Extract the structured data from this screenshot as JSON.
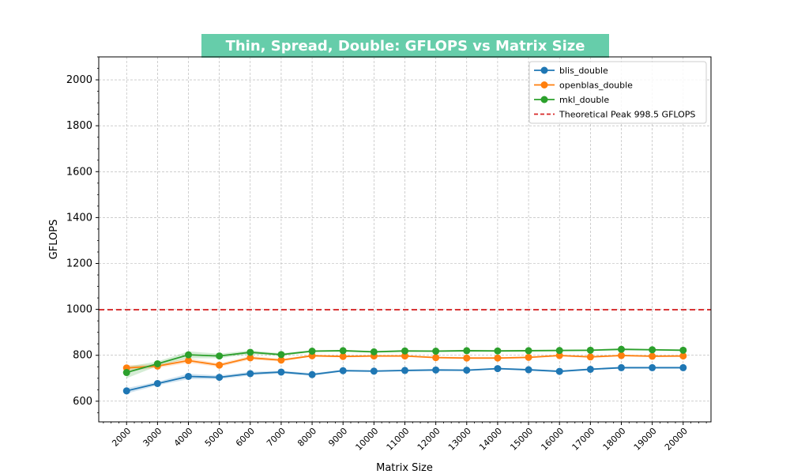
{
  "chart_data": {
    "type": "line",
    "title": "Thin, Spread, Double: GFLOPS vs Matrix Size",
    "title_bg": "#66cdaa",
    "xlabel": "Matrix Size",
    "ylabel": "GFLOPS",
    "xlim": [
      1100,
      20900
    ],
    "ylim": [
      510,
      2100
    ],
    "yticks": [
      600,
      800,
      1000,
      1200,
      1400,
      1600,
      1800,
      2000
    ],
    "x": [
      2000,
      3000,
      4000,
      5000,
      6000,
      7000,
      8000,
      9000,
      10000,
      11000,
      12000,
      13000,
      14000,
      15000,
      16000,
      17000,
      18000,
      19000,
      20000
    ],
    "x_tick_labels": [
      "2000",
      "3000",
      "4000",
      "5000",
      "6000",
      "7000",
      "8000",
      "9000",
      "10000",
      "11000",
      "12000",
      "13000",
      "14000",
      "15000",
      "16000",
      "17000",
      "18000",
      "19000",
      "20000"
    ],
    "grid": true,
    "legend_position": "top-right",
    "series": [
      {
        "name": "blis_double",
        "color": "#1f77b4",
        "values": [
          645,
          677,
          708,
          704,
          720,
          727,
          716,
          733,
          731,
          734,
          736,
          735,
          742,
          737,
          730,
          739,
          746,
          746,
          746
        ],
        "band": [
          12,
          8,
          12,
          8,
          8,
          6,
          6,
          4,
          4,
          4,
          4,
          4,
          4,
          4,
          4,
          4,
          4,
          4,
          4
        ]
      },
      {
        "name": "openblas_double",
        "color": "#ff7f0e",
        "values": [
          745,
          753,
          777,
          757,
          789,
          779,
          798,
          795,
          797,
          797,
          790,
          788,
          788,
          791,
          799,
          793,
          799,
          796,
          797
        ],
        "band": [
          12,
          8,
          10,
          8,
          8,
          6,
          4,
          4,
          4,
          4,
          4,
          4,
          4,
          4,
          4,
          4,
          4,
          4,
          4
        ]
      },
      {
        "name": "mkl_double",
        "color": "#2ca02c",
        "values": [
          725,
          763,
          802,
          797,
          813,
          803,
          818,
          820,
          815,
          819,
          818,
          820,
          819,
          820,
          821,
          822,
          826,
          824,
          822
        ],
        "band": [
          25,
          10,
          15,
          10,
          8,
          6,
          4,
          4,
          4,
          4,
          4,
          4,
          4,
          4,
          4,
          4,
          4,
          4,
          4
        ]
      }
    ],
    "reference_line": {
      "name": "Theoretical Peak 998.5 GFLOPS",
      "value": 998.5,
      "color": "#d62728"
    }
  }
}
